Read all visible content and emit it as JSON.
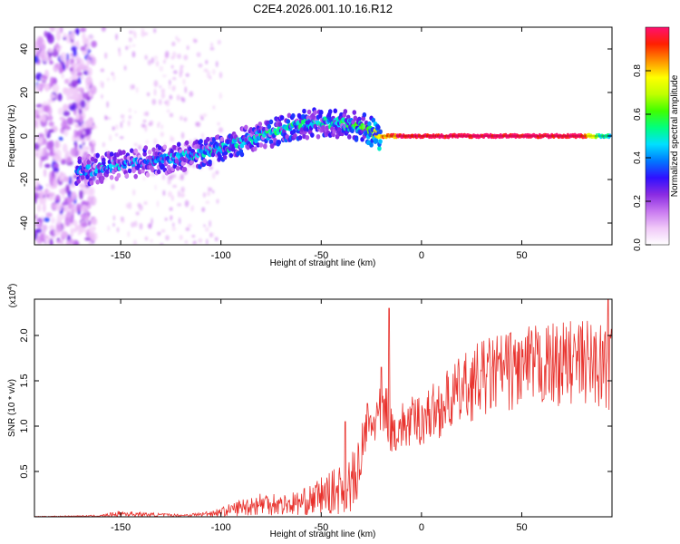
{
  "title": "C2E4.2026.001.10.16.R12",
  "chart_data": [
    {
      "type": "heatmap",
      "name": "spectrogram",
      "xlabel": "Height of straight line (km)",
      "ylabel": "Frequency (Hz)",
      "xlim": [
        -193,
        95
      ],
      "ylim": [
        -50,
        50
      ],
      "xticks": [
        -150,
        -100,
        -50,
        0,
        50
      ],
      "yticks": [
        -40,
        -20,
        0,
        20,
        40
      ],
      "colorbar": {
        "label": "Normalized spectral amplitude",
        "range": [
          0.0,
          1.0
        ],
        "ticks": [
          0.0,
          0.2,
          0.4,
          0.6,
          0.8
        ],
        "tick_labels": [
          "0.0",
          "0.2",
          "0.4",
          "0.6",
          "0.8"
        ],
        "colors": [
          "#ffffff",
          "#f0c8f8",
          "#c878f0",
          "#8a2be2",
          "#3010ff",
          "#0078ff",
          "#00e0ff",
          "#00ff80",
          "#40ff00",
          "#c0ff00",
          "#ffff00",
          "#ff9000",
          "#ff2000",
          "#ff1070"
        ]
      },
      "ridge": {
        "x": [
          -168,
          -160,
          -150,
          -140,
          -130,
          -120,
          -110,
          -100,
          -90,
          -80,
          -70,
          -60,
          -50,
          -42,
          -36,
          -30,
          -25,
          -20,
          -10,
          0,
          20,
          40,
          60,
          80,
          90,
          94
        ],
        "y": [
          -16,
          -15,
          -13,
          -12,
          -11,
          -10,
          -8,
          -6,
          -3,
          0,
          3,
          5,
          6,
          6,
          5,
          4,
          2,
          0,
          0,
          0,
          0,
          0,
          0,
          0,
          0,
          0
        ],
        "strength": [
          0.35,
          0.4,
          0.4,
          0.38,
          0.4,
          0.42,
          0.45,
          0.45,
          0.45,
          0.48,
          0.5,
          0.5,
          0.45,
          0.45,
          0.55,
          0.55,
          0.65,
          0.8,
          0.95,
          1.0,
          1.0,
          1.0,
          1.0,
          1.0,
          0.5,
          0.45
        ]
      }
    },
    {
      "type": "line",
      "name": "snr",
      "xlabel": "Height of straight line (km)",
      "ylabel": "SNR (10 * v/v)",
      "y_multiplier": "(x10",
      "y_multiplier_exp": "4",
      "y_multiplier_close": ")",
      "xlim": [
        -193,
        95
      ],
      "ylim": [
        0,
        2.4
      ],
      "xticks": [
        -150,
        -100,
        -50,
        0,
        50
      ],
      "yticks": [
        0.5,
        1.0,
        1.5,
        2.0
      ],
      "ytick_labels": [
        "0.5",
        "1.0",
        "1.5",
        "2.0"
      ],
      "color": "#e8312c",
      "envelope": {
        "x": [
          -193,
          -160,
          -150,
          -140,
          -120,
          -110,
          -100,
          -95,
          -90,
          -80,
          -75,
          -70,
          -60,
          -55,
          -50,
          -45,
          -40,
          -35,
          -30,
          -25,
          -20,
          -17,
          -15,
          -10,
          -5,
          0,
          10,
          20,
          30,
          40,
          50,
          60,
          70,
          80,
          85,
          90,
          95
        ],
        "y": [
          0.005,
          0.02,
          0.07,
          0.05,
          0.03,
          0.05,
          0.1,
          0.15,
          0.2,
          0.28,
          0.3,
          0.25,
          0.3,
          0.35,
          0.45,
          0.5,
          0.6,
          0.7,
          0.9,
          1.15,
          1.25,
          1.3,
          1.05,
          1.1,
          1.15,
          1.2,
          1.35,
          1.55,
          1.7,
          1.78,
          1.82,
          1.85,
          1.88,
          1.9,
          1.9,
          1.85,
          1.8
        ]
      },
      "spikes": [
        {
          "x": -16,
          "y": 2.3
        },
        {
          "x": -20,
          "y": 1.65
        },
        {
          "x": -27,
          "y": 1.25
        },
        {
          "x": -38,
          "y": 1.05
        },
        {
          "x": 93,
          "y": 2.4
        }
      ]
    }
  ]
}
